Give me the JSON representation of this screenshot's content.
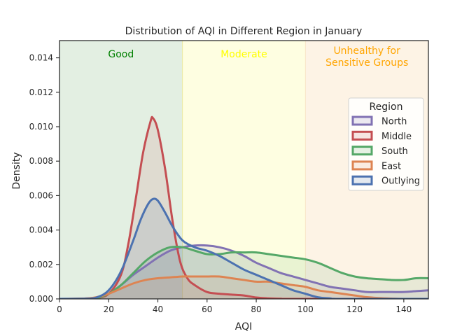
{
  "chart_data": {
    "type": "area",
    "title": "Distribution of AQI in Different Region in January",
    "xlabel": "AQI",
    "ylabel": "Density",
    "xlim": [
      0,
      150
    ],
    "ylim": [
      0,
      0.015
    ],
    "xticks": [
      0,
      20,
      40,
      60,
      80,
      100,
      120,
      140
    ],
    "xtick_labels": [
      "0",
      "20",
      "40",
      "60",
      "80",
      "100",
      "120",
      "140"
    ],
    "yticks": [
      0,
      0.002,
      0.004,
      0.006,
      0.008,
      0.01,
      0.012,
      0.014
    ],
    "ytick_labels": [
      "0.000",
      "0.002",
      "0.004",
      "0.006",
      "0.008",
      "0.010",
      "0.012",
      "0.014"
    ],
    "bands": [
      {
        "label": "Good",
        "from": 0,
        "to": 50,
        "color": "#2e8b2e",
        "fill": "#e3efe2",
        "text_color": "#008000"
      },
      {
        "label": "Moderate",
        "from": 50,
        "to": 100,
        "color": "#e8e070",
        "fill": "#fefee1",
        "text_color": "#ffff00"
      },
      {
        "label": "Unhealthy for Sensitive Groups",
        "from": 100,
        "to": 150,
        "color": "#f5d8b0",
        "fill": "#fdf3e5",
        "text_color": "#ffa500"
      }
    ],
    "legend": {
      "title": "Region",
      "position": "right"
    },
    "series": [
      {
        "name": "North",
        "color": "#8172b3",
        "points": [
          [
            0,
            0
          ],
          [
            10,
            2e-05
          ],
          [
            15,
            8e-05
          ],
          [
            20,
            0.0003
          ],
          [
            25,
            0.0008
          ],
          [
            30,
            0.0014
          ],
          [
            35,
            0.0019
          ],
          [
            40,
            0.0024
          ],
          [
            45,
            0.0028
          ],
          [
            50,
            0.003
          ],
          [
            55,
            0.0031
          ],
          [
            60,
            0.0031
          ],
          [
            65,
            0.003
          ],
          [
            70,
            0.0028
          ],
          [
            75,
            0.0025
          ],
          [
            80,
            0.0021
          ],
          [
            85,
            0.0018
          ],
          [
            90,
            0.0015
          ],
          [
            95,
            0.0013
          ],
          [
            100,
            0.0011
          ],
          [
            105,
            0.0009
          ],
          [
            110,
            0.0007
          ],
          [
            115,
            0.0006
          ],
          [
            120,
            0.0005
          ],
          [
            125,
            0.0004
          ],
          [
            130,
            0.0004
          ],
          [
            135,
            0.0004
          ],
          [
            140,
            0.0004
          ],
          [
            145,
            0.00045
          ],
          [
            150,
            0.0005
          ]
        ]
      },
      {
        "name": "Middle",
        "color": "#c44e52",
        "points": [
          [
            0,
            0
          ],
          [
            10,
            1e-05
          ],
          [
            15,
            5e-05
          ],
          [
            20,
            0.0003
          ],
          [
            25,
            0.0014
          ],
          [
            28,
            0.0032
          ],
          [
            31,
            0.0058
          ],
          [
            34,
            0.0085
          ],
          [
            37,
            0.0103
          ],
          [
            38,
            0.0105
          ],
          [
            40,
            0.0098
          ],
          [
            43,
            0.0075
          ],
          [
            46,
            0.0045
          ],
          [
            49,
            0.0022
          ],
          [
            52,
            0.0012
          ],
          [
            55,
            0.0008
          ],
          [
            60,
            0.0004
          ],
          [
            65,
            0.0003
          ],
          [
            70,
            0.00025
          ],
          [
            75,
            0.0002
          ],
          [
            80,
            8e-05
          ],
          [
            85,
            3e-05
          ],
          [
            90,
            1e-05
          ],
          [
            95,
            0
          ],
          [
            150,
            0
          ]
        ]
      },
      {
        "name": "South",
        "color": "#55a868",
        "points": [
          [
            0,
            0
          ],
          [
            10,
            1e-05
          ],
          [
            15,
            5e-05
          ],
          [
            20,
            0.0003
          ],
          [
            25,
            0.0008
          ],
          [
            30,
            0.0015
          ],
          [
            35,
            0.0022
          ],
          [
            40,
            0.0027
          ],
          [
            45,
            0.003
          ],
          [
            50,
            0.003
          ],
          [
            55,
            0.0028
          ],
          [
            60,
            0.0026
          ],
          [
            65,
            0.0026
          ],
          [
            70,
            0.0027
          ],
          [
            75,
            0.0027
          ],
          [
            80,
            0.0027
          ],
          [
            85,
            0.0026
          ],
          [
            90,
            0.0025
          ],
          [
            95,
            0.0024
          ],
          [
            100,
            0.0023
          ],
          [
            105,
            0.0021
          ],
          [
            110,
            0.0018
          ],
          [
            115,
            0.0015
          ],
          [
            120,
            0.0013
          ],
          [
            125,
            0.0012
          ],
          [
            130,
            0.00115
          ],
          [
            135,
            0.0011
          ],
          [
            140,
            0.0011
          ],
          [
            145,
            0.0012
          ],
          [
            150,
            0.0012
          ]
        ]
      },
      {
        "name": "East",
        "color": "#dd8452",
        "points": [
          [
            0,
            0
          ],
          [
            10,
            2e-05
          ],
          [
            15,
            0.0001
          ],
          [
            20,
            0.0003
          ],
          [
            25,
            0.0006
          ],
          [
            30,
            0.0009
          ],
          [
            35,
            0.0011
          ],
          [
            40,
            0.0012
          ],
          [
            45,
            0.00125
          ],
          [
            50,
            0.0013
          ],
          [
            55,
            0.0013
          ],
          [
            60,
            0.0013
          ],
          [
            65,
            0.0013
          ],
          [
            70,
            0.0012
          ],
          [
            75,
            0.0011
          ],
          [
            80,
            0.001
          ],
          [
            85,
            0.001
          ],
          [
            90,
            0.0009
          ],
          [
            95,
            0.0008
          ],
          [
            100,
            0.0007
          ],
          [
            105,
            0.0005
          ],
          [
            110,
            0.0004
          ],
          [
            115,
            0.0003
          ],
          [
            120,
            0.0002
          ],
          [
            125,
            0.0001
          ],
          [
            130,
            5e-05
          ],
          [
            135,
            2e-05
          ],
          [
            140,
            0
          ],
          [
            150,
            0
          ]
        ]
      },
      {
        "name": "Outlying",
        "color": "#4c72b0",
        "points": [
          [
            0,
            0
          ],
          [
            10,
            1e-05
          ],
          [
            15,
            8e-05
          ],
          [
            20,
            0.0005
          ],
          [
            25,
            0.0016
          ],
          [
            30,
            0.0034
          ],
          [
            33,
            0.0046
          ],
          [
            36,
            0.0055
          ],
          [
            38,
            0.0058
          ],
          [
            40,
            0.0057
          ],
          [
            43,
            0.005
          ],
          [
            46,
            0.0042
          ],
          [
            50,
            0.0034
          ],
          [
            55,
            0.003
          ],
          [
            60,
            0.0028
          ],
          [
            65,
            0.0025
          ],
          [
            70,
            0.0021
          ],
          [
            75,
            0.0017
          ],
          [
            80,
            0.0014
          ],
          [
            85,
            0.0011
          ],
          [
            90,
            0.0008
          ],
          [
            95,
            0.0005
          ],
          [
            100,
            0.0003
          ],
          [
            105,
            0.0001
          ],
          [
            110,
            3e-05
          ],
          [
            115,
            0
          ],
          [
            150,
            0
          ]
        ]
      }
    ]
  }
}
